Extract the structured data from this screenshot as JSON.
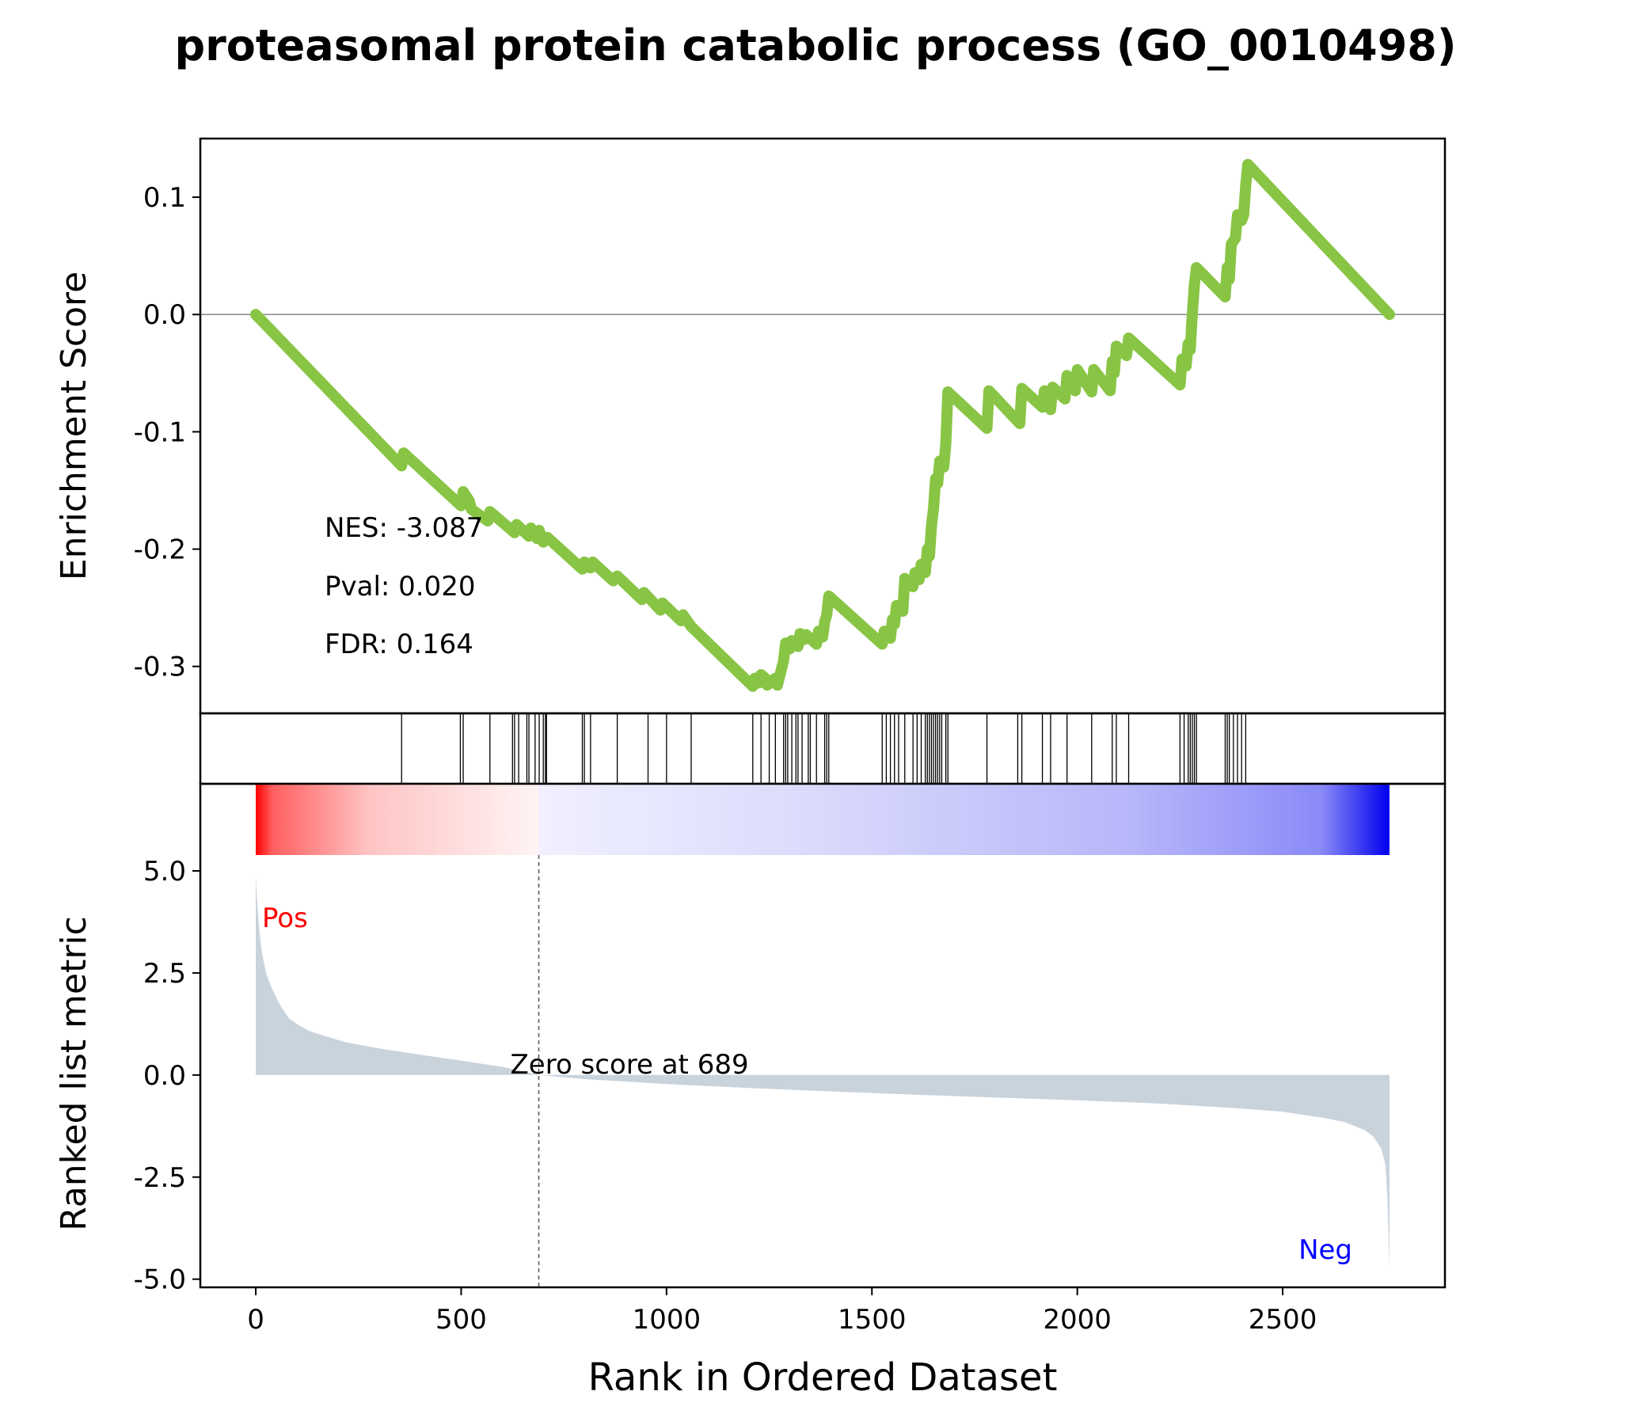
{
  "chart_data": {
    "type": "line",
    "title": "proteasomal protein catabolic process (GO_0010498)",
    "xlabel": "Rank in Ordered Dataset",
    "xlim": [
      -135,
      2895
    ],
    "xticks": [
      0,
      500,
      1000,
      1500,
      2000,
      2500
    ],
    "colors": {
      "es_line": "#88c544",
      "metric_fill": "#c9d3dc",
      "pos_label": "#ff0000",
      "neg_label": "#0000ff"
    },
    "enrichment": {
      "ylabel": "Enrichment Score",
      "ylim": [
        -0.34,
        0.15
      ],
      "yticks": [
        0.1,
        0.0,
        -0.1,
        -0.2,
        -0.3
      ],
      "ytick_labels": [
        "0.1",
        "0.0",
        "-0.1",
        "-0.2",
        "-0.3"
      ],
      "stats": {
        "nes": "NES: -3.087",
        "pval": "Pval: 0.020",
        "fdr": "FDR: 0.164"
      },
      "series": [
        {
          "x": [
            0,
            355,
            360,
            500,
            505,
            520,
            525,
            565,
            570,
            630,
            635,
            665,
            670,
            685,
            690,
            700,
            710,
            795,
            800,
            815,
            820,
            870,
            880,
            940,
            945,
            985,
            990,
            1035,
            1040,
            1060,
            1210,
            1215,
            1225,
            1230,
            1240,
            1245,
            1265,
            1270,
            1285,
            1290,
            1300,
            1305,
            1320,
            1325,
            1335,
            1340,
            1365,
            1370,
            1380,
            1385,
            1390,
            1395,
            1525,
            1530,
            1545,
            1550,
            1555,
            1560,
            1575,
            1580,
            1600,
            1605,
            1615,
            1620,
            1630,
            1635,
            1640,
            1645,
            1650,
            1655,
            1660,
            1665,
            1675,
            1680,
            1685,
            1780,
            1785,
            1860,
            1865,
            1915,
            1920,
            1935,
            1940,
            1970,
            1975,
            1995,
            2000,
            2035,
            2040,
            2080,
            2085,
            2090,
            2095,
            2120,
            2125,
            2250,
            2255,
            2265,
            2270,
            2275,
            2280,
            2285,
            2290,
            2360,
            2365,
            2370,
            2375,
            2385,
            2390,
            2400,
            2405,
            2410,
            2415,
            2760
          ],
          "y": [
            0.0,
            -0.129,
            -0.118,
            -0.163,
            -0.151,
            -0.159,
            -0.166,
            -0.176,
            -0.168,
            -0.186,
            -0.179,
            -0.189,
            -0.182,
            -0.191,
            -0.184,
            -0.194,
            -0.19,
            -0.217,
            -0.211,
            -0.216,
            -0.211,
            -0.227,
            -0.223,
            -0.243,
            -0.237,
            -0.252,
            -0.246,
            -0.261,
            -0.256,
            -0.266,
            -0.317,
            -0.31,
            -0.314,
            -0.307,
            -0.31,
            -0.316,
            -0.31,
            -0.316,
            -0.295,
            -0.28,
            -0.285,
            -0.278,
            -0.283,
            -0.272,
            -0.277,
            -0.273,
            -0.281,
            -0.27,
            -0.275,
            -0.262,
            -0.256,
            -0.24,
            -0.281,
            -0.27,
            -0.276,
            -0.26,
            -0.264,
            -0.248,
            -0.253,
            -0.225,
            -0.232,
            -0.22,
            -0.226,
            -0.213,
            -0.22,
            -0.2,
            -0.206,
            -0.18,
            -0.165,
            -0.14,
            -0.144,
            -0.125,
            -0.13,
            -0.11,
            -0.066,
            -0.097,
            -0.065,
            -0.093,
            -0.063,
            -0.079,
            -0.065,
            -0.081,
            -0.062,
            -0.072,
            -0.052,
            -0.065,
            -0.047,
            -0.066,
            -0.047,
            -0.065,
            -0.04,
            -0.05,
            -0.027,
            -0.035,
            -0.02,
            -0.06,
            -0.038,
            -0.044,
            -0.025,
            -0.03,
            0.0,
            0.025,
            0.04,
            0.015,
            0.04,
            0.03,
            0.06,
            0.065,
            0.085,
            0.08,
            0.085,
            0.11,
            0.128,
            0.0
          ]
        }
      ]
    },
    "hits": [
      355,
      498,
      505,
      570,
      625,
      630,
      640,
      660,
      665,
      680,
      690,
      700,
      705,
      708,
      795,
      800,
      815,
      880,
      955,
      1000,
      1060,
      1210,
      1230,
      1250,
      1265,
      1285,
      1290,
      1295,
      1305,
      1315,
      1320,
      1330,
      1345,
      1350,
      1365,
      1385,
      1390,
      1395,
      1525,
      1535,
      1545,
      1555,
      1565,
      1580,
      1600,
      1610,
      1620,
      1630,
      1635,
      1640,
      1645,
      1650,
      1655,
      1660,
      1665,
      1670,
      1680,
      1685,
      1780,
      1855,
      1865,
      1915,
      1935,
      1975,
      2035,
      2085,
      2095,
      2125,
      2250,
      2260,
      2270,
      2275,
      2280,
      2285,
      2290,
      2360,
      2365,
      2370,
      2380,
      2390,
      2400,
      2410
    ],
    "metric": {
      "ylabel": "Ranked list metric",
      "ylim": [
        -5.2,
        5.0
      ],
      "yticks": [
        5.0,
        2.5,
        0.0,
        -2.5,
        -5.0
      ],
      "ytick_labels": [
        "5.0",
        "2.5",
        "0.0",
        "-2.5",
        "-5.0"
      ],
      "pos_label": "Pos",
      "neg_label": "Neg",
      "zero_cross": 689,
      "zero_label": "Zero score at 689",
      "curve": {
        "x": [
          0,
          3,
          8,
          15,
          25,
          40,
          60,
          80,
          100,
          130,
          170,
          220,
          300,
          400,
          500,
          600,
          689,
          800,
          1000,
          1200,
          1400,
          1600,
          1800,
          2000,
          2200,
          2400,
          2500,
          2600,
          2650,
          2700,
          2720,
          2740,
          2750,
          2755,
          2760
        ],
        "y": [
          4.9,
          4.3,
          3.6,
          3.0,
          2.5,
          2.1,
          1.7,
          1.4,
          1.25,
          1.08,
          0.95,
          0.8,
          0.65,
          0.5,
          0.35,
          0.2,
          0.0,
          -0.1,
          -0.22,
          -0.32,
          -0.4,
          -0.48,
          -0.55,
          -0.62,
          -0.7,
          -0.82,
          -0.9,
          -1.05,
          -1.15,
          -1.35,
          -1.5,
          -1.8,
          -2.2,
          -3.0,
          -4.8
        ]
      }
    },
    "colorbar": {
      "x_start": 0,
      "x_end": 2760,
      "zero_cross": 689
    }
  }
}
